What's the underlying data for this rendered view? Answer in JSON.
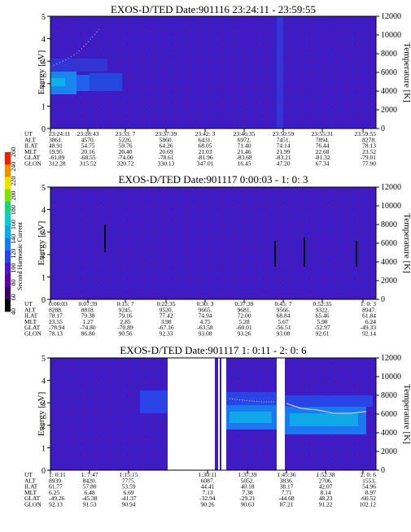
{
  "colorbar": {
    "label": "Second Harmonic Current",
    "ticks": [
      "40",
      "60",
      "80",
      "100",
      "120",
      "140",
      "160",
      "180",
      "200",
      "220",
      "240",
      "260"
    ],
    "colors": [
      "#000000",
      "#3b0060",
      "#5a00a0",
      "#4a18c8",
      "#2a44e8",
      "#1a78f0",
      "#10a8e8",
      "#10c8d0",
      "#20d080",
      "#80e000",
      "#f0e000",
      "#f09000",
      "#f02000"
    ]
  },
  "panels": [
    {
      "title": "EXOS-D/TED   Date:901116  23:24:11 - 23:59:55",
      "ylabel": "Energy [eV]",
      "y2label": "Temperature [K]",
      "yticks": [
        "0",
        "1",
        "2",
        "3",
        "4",
        "5"
      ],
      "y2ticks": [
        "0",
        "2000",
        "4000",
        "6000",
        "8000",
        "10000",
        "12000"
      ],
      "row_labels": [
        "UT",
        "ALT",
        "ILAT",
        "MLT",
        "GLAT",
        "GLON"
      ],
      "columns": [
        [
          "23:24:11",
          "3861.",
          "48.91",
          "19.95",
          "-61.89",
          "312.28"
        ],
        [
          "23:28:43",
          "4570.",
          "54.75",
          "20.16",
          "-68.55",
          "315.52"
        ],
        [
          "23:33: 7",
          "5226.",
          "59.76",
          "20.40",
          "-74.00",
          "320.72"
        ],
        [
          "23:37:39",
          "5860.",
          "64.26",
          "20.69",
          "-78.61",
          "330.13"
        ],
        [
          "23:42: 3",
          "6431.",
          "68.05",
          "21.03",
          "-81.96",
          "347.01"
        ],
        [
          "23:46:35",
          "6972.",
          "71.40",
          "21.46",
          "-83.68",
          "16.45"
        ],
        [
          "23:50:59",
          "7451.",
          "74.14",
          "21.99",
          "-83.21",
          "47.20"
        ],
        [
          "23:55:31",
          "7894.",
          "76.44",
          "22.68",
          "-81.32",
          "67.34"
        ],
        [
          "23:59:55",
          "8278.",
          "78.13",
          "23.52",
          "-79.01",
          "77.90"
        ]
      ]
    },
    {
      "title": "EXOS-D/TED   Date:901117  0:00:03 - 1: 0: 3",
      "ylabel": "Energy [eV]",
      "y2label": "Temperature [K]",
      "yticks": [
        "0",
        "1",
        "2",
        "3",
        "4",
        "5"
      ],
      "y2ticks": [
        "0",
        "2000",
        "4000",
        "6000",
        "8000",
        "10000",
        "12000"
      ],
      "row_labels": [
        "UT",
        "ALT",
        "ILAT",
        "MLT",
        "GLAT",
        "GLON"
      ],
      "columns": [
        [
          "0:00:03",
          "8288.",
          "78.17",
          "23.55",
          "-78.94",
          "78.13"
        ],
        [
          "0:07:39",
          "8818.",
          "79.38",
          "1.27",
          "-74.80",
          "86.80"
        ],
        [
          "0:15: 7",
          "9245.",
          "79.16",
          "2.85",
          "-70.89",
          "90.56"
        ],
        [
          "0:22:35",
          "9520.",
          "77.42",
          "3.98",
          "-67.16",
          "92.33"
        ],
        [
          "0:30: 3",
          "9665.",
          "74.94",
          "4.75",
          "-63.58",
          "93.08"
        ],
        [
          "0:37:39",
          "9681.",
          "72.00",
          "5.28",
          "-60.01",
          "93.26"
        ],
        [
          "0:45: 7",
          "9566.",
          "68.84",
          "5.67",
          "-56.51",
          "93.08"
        ],
        [
          "0:52:35",
          "9322.",
          "65.46",
          "5.98",
          "-52.97",
          "92.61"
        ],
        [
          "1: 0: 3",
          "8947.",
          "61.84",
          "6.24",
          "-49.33",
          "92.14"
        ]
      ]
    },
    {
      "title": "EXOS-D/TED   Date:901117  1: 0:11 - 2: 0: 6",
      "ylabel": "Energy [eV]",
      "y2label": "Temperature [K]",
      "yticks": [
        "0",
        "1",
        "2",
        "3",
        "4",
        "5"
      ],
      "y2ticks": [
        "0",
        "2000",
        "4000",
        "6000",
        "8000",
        "10000",
        "12000"
      ],
      "row_labels": [
        "UT",
        "ALT",
        "ILAT",
        "MLT",
        "GLAT",
        "GLON"
      ],
      "columns": [
        [
          "1: 0:11",
          "8939.",
          "61.77",
          "6.25",
          "-49.26",
          "92.13"
        ],
        [
          "1: 7:47",
          "8420.",
          "57.80",
          "6.48",
          "-45.38",
          "91.53"
        ],
        [
          "1:15:15",
          "7775.",
          "53.59",
          "6.69",
          "-41.37",
          "90.94"
        ],
        [
          "",
          "",
          "",
          "",
          "",
          ""
        ],
        [
          "1:30:11",
          "6087.",
          "44.41",
          "7.13",
          "-32.94",
          "90.26"
        ],
        [
          "1:37:39",
          "5052.",
          "40.18",
          "7.38",
          "-29.21",
          "90.63"
        ],
        [
          "1:45:36",
          "3836.",
          "38.17",
          "7.71",
          "-44.68",
          "87.21"
        ],
        [
          "1:52:38",
          "2706.",
          "42.07",
          "8.14",
          "48.23",
          "91.22"
        ],
        [
          "2: 0: 6",
          "1553.",
          "54.96",
          "8.97",
          "-60.52",
          "102.12"
        ]
      ]
    }
  ]
}
